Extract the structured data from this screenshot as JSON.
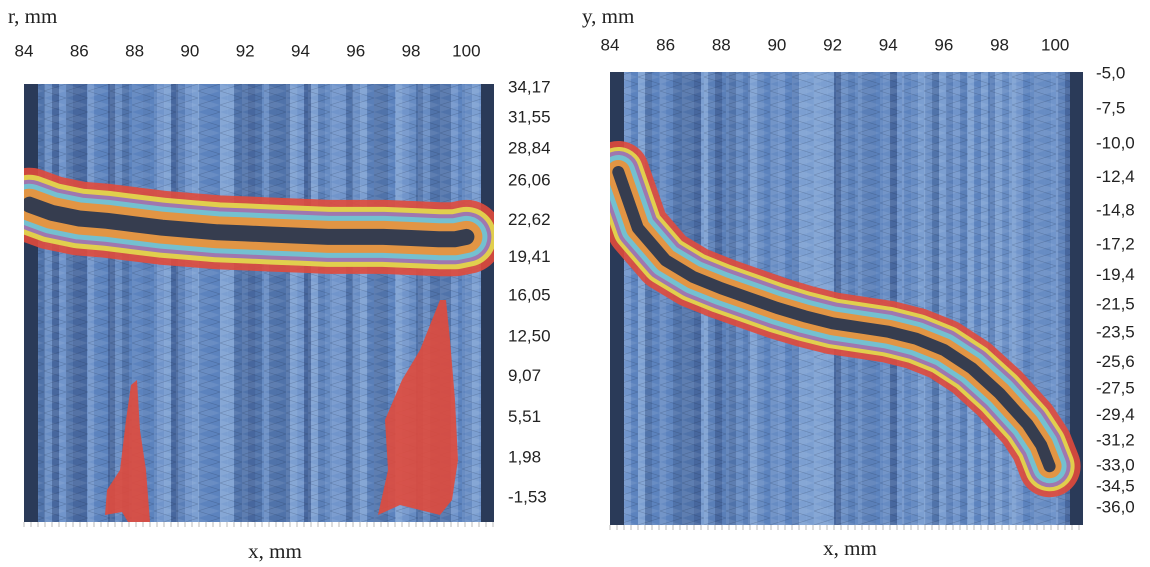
{
  "chart_data": [
    {
      "type": "line",
      "y_label": "r, mm",
      "x_label": "x, mm",
      "x": [
        84.2,
        85,
        86,
        87,
        88,
        89,
        90,
        91,
        92,
        93,
        94,
        95,
        96,
        97,
        98,
        99,
        99.6,
        100
      ],
      "values": [
        24.0,
        23.3,
        22.8,
        22.6,
        22.3,
        22.0,
        21.8,
        21.6,
        21.5,
        21.4,
        21.3,
        21.2,
        21.2,
        21.2,
        21.1,
        21.0,
        21.0,
        21.2
      ],
      "band_colors": [
        "#e04a3c",
        "#e2d64e",
        "#9b72b4",
        "#72c4d2",
        "#e8923c",
        "#2c3850"
      ],
      "xlim": [
        84,
        101
      ],
      "xticks": [
        84,
        86,
        88,
        90,
        92,
        94,
        96,
        98,
        100
      ],
      "ylim": [
        -3.6,
        34.5
      ],
      "yticks": [
        {
          "value": 34.17,
          "label": "34,17"
        },
        {
          "value": 31.55,
          "label": "31,55"
        },
        {
          "value": 28.84,
          "label": "28,84"
        },
        {
          "value": 26.06,
          "label": "26,06"
        },
        {
          "value": 22.62,
          "label": "22,62"
        },
        {
          "value": 19.41,
          "label": "19,41"
        },
        {
          "value": 16.05,
          "label": "16,05"
        },
        {
          "value": 12.5,
          "label": "12,50"
        },
        {
          "value": 9.07,
          "label": "9,07"
        },
        {
          "value": 5.51,
          "label": "5,51"
        },
        {
          "value": 1.98,
          "label": "1,98"
        },
        {
          "value": -1.53,
          "label": "-1,53"
        }
      ]
    },
    {
      "type": "line",
      "y_label": "y, mm",
      "x_label": "x, mm",
      "x": [
        84.3,
        85,
        86,
        87,
        88,
        89,
        90,
        91,
        92,
        93,
        94,
        95,
        96,
        97,
        98,
        99,
        99.5,
        99.8
      ],
      "values": [
        -12,
        -16,
        -18.3,
        -19.5,
        -20.3,
        -21,
        -21.7,
        -22.3,
        -22.8,
        -23.1,
        -23.4,
        -23.9,
        -24.7,
        -26,
        -27.8,
        -30,
        -31.5,
        -33
      ],
      "band_colors": [
        "#e04a3c",
        "#e2d64e",
        "#9b72b4",
        "#72c4d2",
        "#e8923c",
        "#2c3850"
      ],
      "xlim": [
        84,
        101
      ],
      "xticks": [
        84,
        86,
        88,
        90,
        92,
        94,
        96,
        98,
        100
      ],
      "ylim": [
        -37.2,
        -4.86
      ],
      "yticks": [
        {
          "value": -5,
          "label": "-5,0"
        },
        {
          "value": -7.5,
          "label": "-7,5"
        },
        {
          "value": -10,
          "label": "-10,0"
        },
        {
          "value": -12.4,
          "label": "-12,4"
        },
        {
          "value": -14.8,
          "label": "-14,8"
        },
        {
          "value": -17.2,
          "label": "-17,2"
        },
        {
          "value": -19.4,
          "label": "-19,4"
        },
        {
          "value": -21.5,
          "label": "-21,5"
        },
        {
          "value": -23.5,
          "label": "-23,5"
        },
        {
          "value": -25.6,
          "label": "-25,6"
        },
        {
          "value": -27.5,
          "label": "-27,5"
        },
        {
          "value": -29.4,
          "label": "-29,4"
        },
        {
          "value": -31.2,
          "label": "-31,2"
        },
        {
          "value": -33,
          "label": "-33,0"
        },
        {
          "value": -34.5,
          "label": "-34,5"
        },
        {
          "value": -36,
          "label": "-36,0"
        }
      ]
    }
  ]
}
